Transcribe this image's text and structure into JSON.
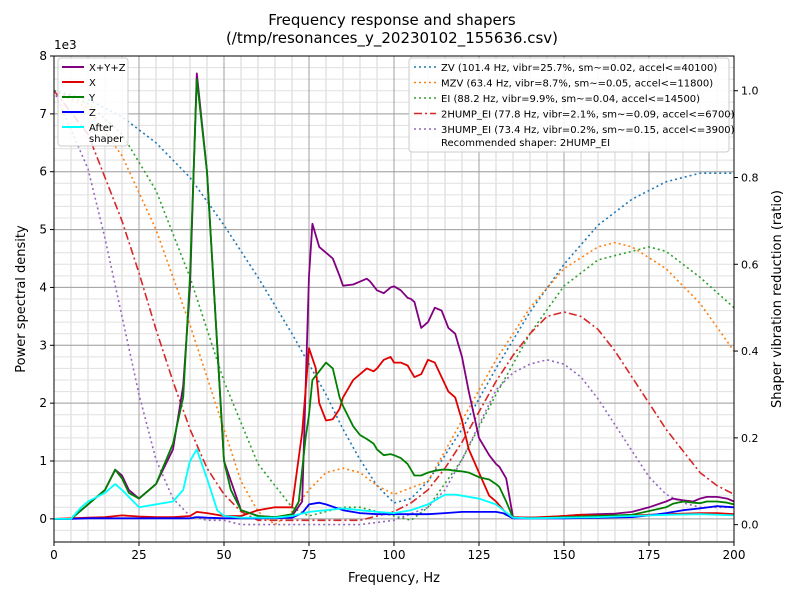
{
  "chart_data": {
    "type": "line",
    "title_line1": "Frequency response and shapers",
    "title_line2": "(/tmp/resonances_y_20230102_155636.csv)",
    "xlabel": "Frequency, Hz",
    "ylabel": "Power spectral density",
    "ylabel_right": "Shaper vibration reduction (ratio)",
    "y_offset_label": "1e3",
    "xlim": [
      0,
      200
    ],
    "ylim": [
      -0.4,
      8.0
    ],
    "ylim_right": [
      -0.04,
      1.08
    ],
    "x_ticks": [
      0,
      25,
      50,
      75,
      100,
      125,
      150,
      175,
      200
    ],
    "y_ticks": [
      0,
      1,
      2,
      3,
      4,
      5,
      6,
      7,
      8
    ],
    "y_ticks_right": [
      0.0,
      0.2,
      0.4,
      0.6,
      0.8,
      1.0
    ],
    "grid": true,
    "legend_left_placement": "upper-left",
    "legend_right_placement": "upper-right",
    "recommended_text": "Recommended shaper: 2HUMP_EI",
    "psd_series": [
      {
        "name": "X+Y+Z",
        "color": "#800080",
        "x": [
          0,
          5,
          10,
          15,
          18,
          20,
          22,
          25,
          30,
          35,
          38,
          40,
          42,
          45,
          48,
          50,
          55,
          60,
          65,
          70,
          73,
          75,
          76,
          78,
          80,
          82,
          84,
          85,
          88,
          90,
          92,
          93,
          95,
          97,
          99,
          100,
          102,
          104,
          105,
          106,
          108,
          110,
          112,
          114,
          116,
          118,
          120,
          122,
          125,
          128,
          130,
          131,
          133,
          135,
          140,
          145,
          150,
          155,
          160,
          165,
          170,
          175,
          180,
          182,
          185,
          188,
          190,
          192,
          195,
          198,
          200
        ],
        "y": [
          0,
          0,
          0.25,
          0.5,
          0.85,
          0.75,
          0.5,
          0.35,
          0.6,
          1.2,
          2.3,
          4.0,
          7.7,
          6.0,
          3.0,
          1.0,
          0.15,
          0.05,
          0.03,
          0.05,
          0.3,
          4.2,
          5.1,
          4.7,
          4.6,
          4.5,
          4.2,
          4.03,
          4.05,
          4.1,
          4.15,
          4.1,
          3.95,
          3.9,
          4.0,
          4.02,
          3.95,
          3.82,
          3.8,
          3.75,
          3.3,
          3.4,
          3.65,
          3.6,
          3.3,
          3.2,
          2.8,
          2.2,
          1.4,
          1.1,
          0.95,
          0.9,
          0.7,
          0.03,
          0.02,
          0.03,
          0.05,
          0.07,
          0.08,
          0.09,
          0.12,
          0.2,
          0.3,
          0.35,
          0.32,
          0.3,
          0.35,
          0.38,
          0.38,
          0.35,
          0.3
        ]
      },
      {
        "name": "X",
        "color": "#e00000",
        "x": [
          0,
          10,
          15,
          20,
          25,
          30,
          35,
          40,
          42,
          45,
          50,
          55,
          60,
          65,
          70,
          73,
          75,
          77,
          78,
          80,
          82,
          84,
          85,
          88,
          90,
          92,
          94,
          95,
          97,
          99,
          100,
          102,
          104,
          105,
          106,
          108,
          110,
          112,
          114,
          116,
          118,
          120,
          122,
          125,
          128,
          130,
          133,
          135,
          140,
          150,
          155,
          160,
          170,
          180,
          190,
          195,
          200
        ],
        "y": [
          0,
          0.02,
          0.03,
          0.06,
          0.04,
          0.03,
          0.03,
          0.05,
          0.12,
          0.1,
          0.05,
          0.05,
          0.15,
          0.2,
          0.2,
          1.5,
          2.95,
          2.6,
          2.0,
          1.7,
          1.72,
          1.9,
          2.1,
          2.4,
          2.5,
          2.6,
          2.55,
          2.6,
          2.75,
          2.8,
          2.7,
          2.7,
          2.65,
          2.55,
          2.45,
          2.5,
          2.75,
          2.7,
          2.45,
          2.2,
          2.1,
          1.7,
          1.2,
          0.8,
          0.4,
          0.3,
          0.1,
          0.03,
          0.02,
          0.05,
          0.07,
          0.06,
          0.06,
          0.08,
          0.1,
          0.1,
          0.08
        ]
      },
      {
        "name": "Y",
        "color": "#008000",
        "x": [
          0,
          5,
          10,
          15,
          18,
          20,
          22,
          25,
          30,
          35,
          38,
          40,
          42,
          45,
          48,
          50,
          52,
          55,
          60,
          65,
          70,
          72,
          74,
          75,
          76,
          78,
          80,
          82,
          84,
          85,
          88,
          90,
          92,
          94,
          95,
          97,
          99,
          100,
          102,
          104,
          105,
          106,
          108,
          110,
          112,
          114,
          116,
          118,
          120,
          122,
          125,
          128,
          130,
          131,
          133,
          135,
          140,
          150,
          160,
          170,
          180,
          182,
          185,
          188,
          190,
          192,
          195,
          198,
          200
        ],
        "y": [
          0,
          0,
          0.25,
          0.5,
          0.85,
          0.7,
          0.45,
          0.35,
          0.6,
          1.3,
          2.1,
          4.2,
          7.6,
          6.0,
          3.0,
          1.0,
          0.5,
          0.15,
          0.05,
          0.03,
          0.08,
          0.3,
          1.4,
          1.8,
          2.4,
          2.55,
          2.7,
          2.6,
          2.1,
          1.95,
          1.6,
          1.45,
          1.38,
          1.3,
          1.2,
          1.1,
          1.12,
          1.1,
          1.05,
          0.95,
          0.85,
          0.75,
          0.75,
          0.8,
          0.83,
          0.85,
          0.85,
          0.83,
          0.82,
          0.8,
          0.72,
          0.68,
          0.6,
          0.55,
          0.3,
          0.02,
          0.01,
          0.03,
          0.05,
          0.07,
          0.2,
          0.26,
          0.3,
          0.28,
          0.27,
          0.3,
          0.3,
          0.28,
          0.25
        ]
      },
      {
        "name": "Z",
        "color": "#0000ff",
        "x": [
          0,
          5,
          10,
          20,
          30,
          40,
          42,
          45,
          50,
          60,
          70,
          73,
          75,
          78,
          80,
          85,
          90,
          95,
          100,
          110,
          115,
          120,
          130,
          132,
          135,
          140,
          150,
          160,
          170,
          175,
          180,
          185,
          190,
          195,
          200
        ],
        "y": [
          0,
          0,
          0.01,
          0.01,
          0.01,
          0.01,
          0.03,
          0.02,
          0.01,
          0.01,
          0.02,
          0.1,
          0.25,
          0.28,
          0.25,
          0.15,
          0.1,
          0.08,
          0.08,
          0.08,
          0.1,
          0.12,
          0.12,
          0.1,
          0.01,
          0.01,
          0.01,
          0.02,
          0.03,
          0.06,
          0.1,
          0.15,
          0.18,
          0.22,
          0.2
        ]
      },
      {
        "name": "After\nshaper",
        "color": "#00ffff",
        "x": [
          0,
          5,
          8,
          10,
          15,
          18,
          20,
          25,
          30,
          35,
          38,
          40,
          42,
          45,
          48,
          50,
          55,
          60,
          65,
          70,
          75,
          80,
          85,
          90,
          95,
          100,
          105,
          110,
          115,
          118,
          120,
          125,
          130,
          135,
          140,
          150,
          160,
          170,
          180,
          190,
          200
        ],
        "y": [
          0,
          0,
          0.2,
          0.3,
          0.45,
          0.6,
          0.5,
          0.2,
          0.25,
          0.3,
          0.5,
          1.0,
          1.2,
          0.7,
          0.15,
          0.05,
          0.02,
          0.02,
          0.02,
          0.05,
          0.12,
          0.15,
          0.18,
          0.15,
          0.12,
          0.1,
          0.15,
          0.25,
          0.42,
          0.42,
          0.4,
          0.35,
          0.25,
          0.02,
          0.01,
          0.02,
          0.03,
          0.05,
          0.07,
          0.08,
          0.06
        ]
      }
    ],
    "shaper_series": [
      {
        "name": "ZV (101.4 Hz, vibr=25.7%, sm~=0.02, accel<=40100)",
        "color": "#1f77b4",
        "dash": "dotted",
        "x": [
          0,
          10,
          20,
          30,
          40,
          50,
          60,
          70,
          75,
          80,
          85,
          90,
          95,
          100,
          105,
          110,
          120,
          130,
          140,
          150,
          160,
          170,
          180,
          190,
          200
        ],
        "y": [
          1.0,
          0.98,
          0.94,
          0.88,
          0.8,
          0.69,
          0.57,
          0.44,
          0.37,
          0.3,
          0.22,
          0.15,
          0.09,
          0.05,
          0.06,
          0.1,
          0.22,
          0.36,
          0.49,
          0.6,
          0.69,
          0.75,
          0.79,
          0.81,
          0.81
        ]
      },
      {
        "name": "MZV (63.4 Hz, vibr=8.7%, sm~=0.05, accel<=11800)",
        "color": "#ff7f0e",
        "dash": "dotted",
        "x": [
          0,
          10,
          20,
          30,
          40,
          50,
          55,
          60,
          65,
          70,
          75,
          80,
          85,
          90,
          95,
          100,
          110,
          120,
          130,
          140,
          150,
          160,
          165,
          170,
          180,
          190,
          200
        ],
        "y": [
          1.0,
          0.96,
          0.85,
          0.68,
          0.46,
          0.22,
          0.1,
          0.03,
          0.0,
          0.03,
          0.08,
          0.12,
          0.13,
          0.12,
          0.09,
          0.07,
          0.1,
          0.24,
          0.38,
          0.5,
          0.59,
          0.64,
          0.65,
          0.64,
          0.59,
          0.51,
          0.4
        ]
      },
      {
        "name": "EI (88.2 Hz, vibr=9.9%, sm~=0.04, accel<=14500)",
        "color": "#2ca02c",
        "dash": "dotted",
        "x": [
          0,
          10,
          20,
          30,
          40,
          50,
          60,
          70,
          75,
          80,
          85,
          90,
          95,
          100,
          105,
          110,
          120,
          130,
          140,
          150,
          160,
          170,
          175,
          180,
          190,
          200
        ],
        "y": [
          1.0,
          0.97,
          0.9,
          0.77,
          0.57,
          0.33,
          0.14,
          0.04,
          0.02,
          0.03,
          0.04,
          0.04,
          0.03,
          0.02,
          0.01,
          0.04,
          0.15,
          0.3,
          0.44,
          0.55,
          0.61,
          0.63,
          0.64,
          0.63,
          0.57,
          0.5
        ]
      },
      {
        "name": "2HUMP_EI (77.8 Hz, vibr=2.1%, sm~=0.09, accel<=6700)",
        "color": "#d62728",
        "dash": "dashdot",
        "x": [
          0,
          10,
          20,
          25,
          30,
          35,
          40,
          45,
          50,
          55,
          60,
          65,
          70,
          75,
          80,
          85,
          90,
          95,
          100,
          105,
          110,
          115,
          120,
          125,
          130,
          135,
          140,
          145,
          150,
          155,
          160,
          165,
          170,
          175,
          180,
          185,
          190,
          195,
          200
        ],
        "y": [
          1.0,
          0.9,
          0.7,
          0.58,
          0.45,
          0.33,
          0.22,
          0.13,
          0.07,
          0.03,
          0.01,
          0.01,
          0.01,
          0.01,
          0.01,
          0.01,
          0.01,
          0.02,
          0.03,
          0.05,
          0.08,
          0.13,
          0.19,
          0.26,
          0.33,
          0.39,
          0.44,
          0.48,
          0.49,
          0.48,
          0.45,
          0.4,
          0.34,
          0.28,
          0.22,
          0.17,
          0.12,
          0.09,
          0.07
        ]
      },
      {
        "name": "3HUMP_EI (73.4 Hz, vibr=0.2%, sm~=0.15, accel<=3900)",
        "color": "#9467bd",
        "dash": "dotted",
        "x": [
          0,
          10,
          15,
          20,
          25,
          30,
          35,
          40,
          45,
          50,
          55,
          60,
          70,
          80,
          90,
          100,
          110,
          115,
          120,
          125,
          130,
          135,
          140,
          145,
          150,
          155,
          160,
          165,
          170,
          175,
          180,
          185,
          190,
          195,
          200
        ],
        "y": [
          1.0,
          0.82,
          0.66,
          0.48,
          0.3,
          0.15,
          0.06,
          0.02,
          0.01,
          0.01,
          0.0,
          0.0,
          0.0,
          0.0,
          0.0,
          0.01,
          0.04,
          0.08,
          0.15,
          0.23,
          0.31,
          0.35,
          0.37,
          0.38,
          0.37,
          0.34,
          0.29,
          0.23,
          0.17,
          0.11,
          0.07,
          0.05,
          0.04,
          0.04,
          0.04
        ]
      }
    ]
  }
}
